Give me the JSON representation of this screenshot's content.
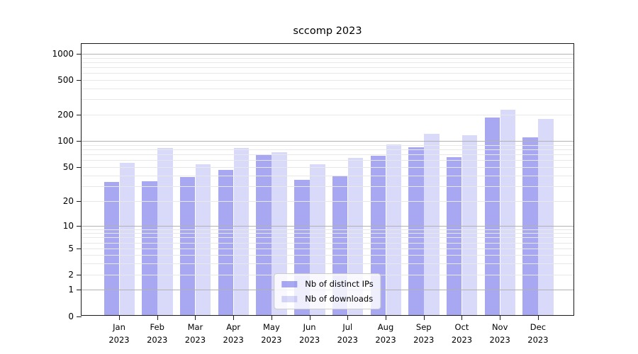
{
  "title": "sccomp 2023",
  "legend": {
    "items": [
      {
        "label": "Nb of distinct IPs",
        "color": "#a9a9f5",
        "fill": "rgba(97,97,232,0.55)"
      },
      {
        "label": "Nb of downloads",
        "color": "#d9d9f9",
        "fill": "rgba(97,97,232,0.24)"
      }
    ]
  },
  "axes": {
    "y_ticks": [
      0,
      1,
      2,
      5,
      10,
      20,
      50,
      100,
      200,
      500,
      1000
    ],
    "major_grid_color": "#b2b2b2",
    "minor_grid_color": "#e8e8e8"
  },
  "chart_data": {
    "type": "bar",
    "title": "sccomp 2023",
    "categories": [
      "Jan 2023",
      "Feb 2023",
      "Mar 2023",
      "Apr 2023",
      "May 2023",
      "Jun 2023",
      "Jul 2023",
      "Aug 2023",
      "Sep 2023",
      "Oct 2023",
      "Nov 2023",
      "Dec 2023"
    ],
    "series": [
      {
        "name": "Nb of distinct IPs",
        "fill": "rgba(97,97,232,0.55)",
        "solid_color": "#a9a9f5",
        "values": [
          32,
          33,
          37,
          45,
          68,
          34,
          38,
          65,
          81,
          63,
          180,
          105
        ]
      },
      {
        "name": "Nb of downloads",
        "fill": "rgba(97,97,232,0.24)",
        "solid_color": "#d9d9f9",
        "values": [
          54,
          80,
          52,
          80,
          71,
          52,
          61,
          88,
          116,
          112,
          220,
          172
        ]
      }
    ],
    "xlabel": "",
    "ylabel": "",
    "yscale": "symlog",
    "y_ticks": [
      0,
      1,
      2,
      5,
      10,
      20,
      50,
      100,
      200,
      500,
      1000
    ],
    "ylim": [
      0,
      1300
    ],
    "grid": true,
    "legend_position": "lower center"
  }
}
